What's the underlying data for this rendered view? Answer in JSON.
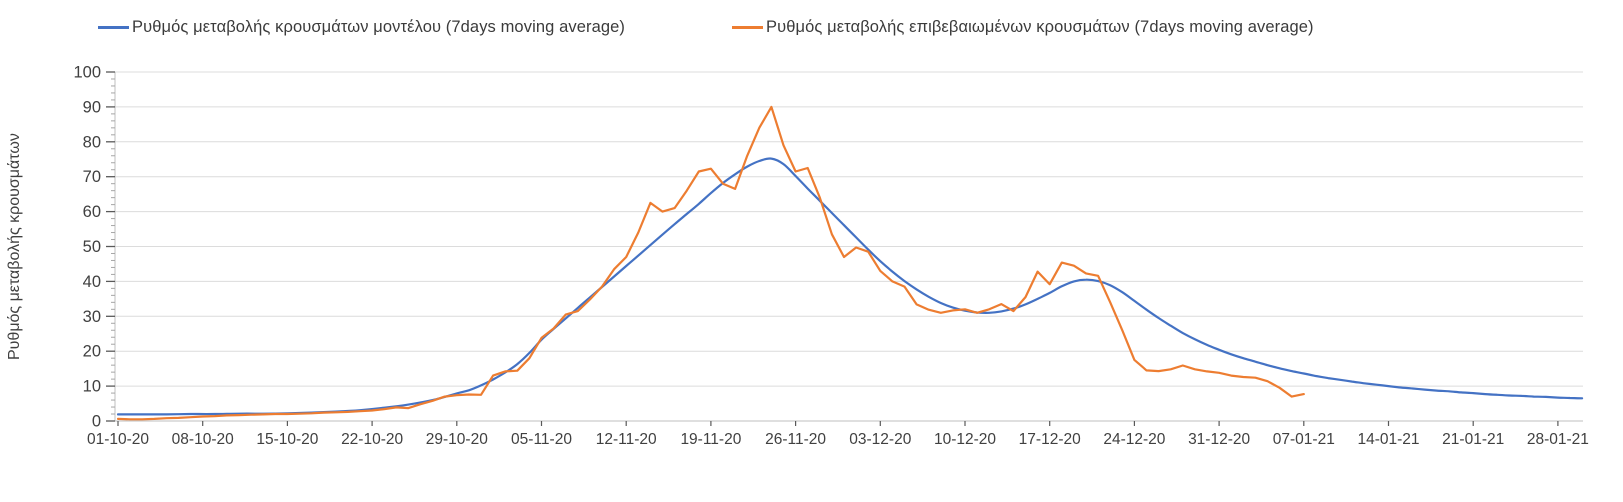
{
  "chart_data": {
    "type": "line",
    "title": "",
    "legend_position": "top",
    "grid": "horizontal",
    "y_axis": {
      "label": "Ρυθμός μεταβολής κρουσμάτων",
      "min": 0,
      "max": 100,
      "major_tick": 10,
      "minor_tick": 2
    },
    "x_axis": {
      "tick_labels": [
        "01-10-20",
        "08-10-20",
        "15-10-20",
        "22-10-20",
        "29-10-20",
        "05-11-20",
        "12-11-20",
        "19-11-20",
        "26-11-20",
        "03-12-20",
        "10-12-20",
        "17-12-20",
        "24-12-20",
        "31-12-20",
        "07-01-21",
        "14-01-21",
        "21-01-21",
        "28-01-21"
      ],
      "days_per_tick": 7,
      "total_days": 121
    },
    "colors": {
      "model_line": "#4472c4",
      "confirmed_line": "#ed7d31",
      "gridline": "#dcdcdc",
      "axis_line": "#bfbfbf",
      "major_tick": "#595959",
      "minor_tick": "#a6a6a6",
      "tick_label": "#404040"
    },
    "series": [
      {
        "name": "Ρυθμός μεταβολής κρουσμάτων μοντέλου (7days moving average)",
        "color": "#4472c4",
        "style": "smooth",
        "points": [
          [
            0,
            1.9
          ],
          [
            2,
            1.9
          ],
          [
            4,
            1.9
          ],
          [
            6,
            2
          ],
          [
            8,
            2
          ],
          [
            10,
            2.1
          ],
          [
            12,
            2.1
          ],
          [
            14,
            2.2
          ],
          [
            16,
            2.4
          ],
          [
            18,
            2.7
          ],
          [
            20,
            3.1
          ],
          [
            22,
            3.8
          ],
          [
            24,
            4.7
          ],
          [
            26,
            6
          ],
          [
            28,
            7.9
          ],
          [
            29,
            8.8
          ],
          [
            30,
            10.2
          ],
          [
            31,
            11.9
          ],
          [
            32,
            13.9
          ],
          [
            33,
            16.3
          ],
          [
            34,
            19.5
          ],
          [
            35,
            23.3
          ],
          [
            36,
            26.4
          ],
          [
            37,
            29.4
          ],
          [
            38,
            32.4
          ],
          [
            39,
            35.4
          ],
          [
            40,
            38.4
          ],
          [
            41,
            41.4
          ],
          [
            42,
            44.4
          ],
          [
            43,
            47.4
          ],
          [
            44,
            50.4
          ],
          [
            45,
            53.4
          ],
          [
            46,
            56.4
          ],
          [
            47,
            59.3
          ],
          [
            48,
            62.2
          ],
          [
            49,
            65.3
          ],
          [
            50,
            68.2
          ],
          [
            51,
            70.7
          ],
          [
            52,
            72.9
          ],
          [
            53,
            74.5
          ],
          [
            54,
            75.2
          ],
          [
            55,
            73.6
          ],
          [
            56,
            70.2
          ],
          [
            57,
            66.6
          ],
          [
            58,
            63.1
          ],
          [
            59,
            59.6
          ],
          [
            60,
            56.1
          ],
          [
            61,
            52.6
          ],
          [
            62,
            49.1
          ],
          [
            63,
            45.8
          ],
          [
            64,
            42.8
          ],
          [
            65,
            40.1
          ],
          [
            66,
            37.7
          ],
          [
            67,
            35.6
          ],
          [
            68,
            33.8
          ],
          [
            69,
            32.5
          ],
          [
            70,
            31.6
          ],
          [
            71,
            31.1
          ],
          [
            72,
            31
          ],
          [
            73,
            31.4
          ],
          [
            74,
            32.2
          ],
          [
            75,
            33.4
          ],
          [
            76,
            35
          ],
          [
            77,
            36.7
          ],
          [
            78,
            38.6
          ],
          [
            79,
            40
          ],
          [
            80,
            40.5
          ],
          [
            81,
            40.1
          ],
          [
            82,
            38.9
          ],
          [
            83,
            36.9
          ],
          [
            84,
            34.4
          ],
          [
            85,
            31.9
          ],
          [
            86,
            29.5
          ],
          [
            87,
            27.3
          ],
          [
            88,
            25.2
          ],
          [
            89,
            23.4
          ],
          [
            90,
            21.8
          ],
          [
            91,
            20.4
          ],
          [
            92,
            19.1
          ],
          [
            93,
            18
          ],
          [
            94,
            17
          ],
          [
            95,
            16
          ],
          [
            96,
            15.1
          ],
          [
            97,
            14.3
          ],
          [
            98,
            13.6
          ],
          [
            99,
            12.9
          ],
          [
            100,
            12.3
          ],
          [
            101,
            11.8
          ],
          [
            102,
            11.3
          ],
          [
            103,
            10.8
          ],
          [
            104,
            10.4
          ],
          [
            105,
            10
          ],
          [
            106,
            9.6
          ],
          [
            107,
            9.3
          ],
          [
            108,
            9
          ],
          [
            109,
            8.7
          ],
          [
            110,
            8.5
          ],
          [
            111,
            8.2
          ],
          [
            112,
            8
          ],
          [
            113,
            7.7
          ],
          [
            114,
            7.5
          ],
          [
            115,
            7.3
          ],
          [
            116,
            7.2
          ],
          [
            117,
            7
          ],
          [
            118,
            6.9
          ],
          [
            119,
            6.7
          ],
          [
            120,
            6.6
          ],
          [
            121,
            6.5
          ]
        ]
      },
      {
        "name": "Ρυθμός μεταβολής επιβεβαιωμένων κρουσμάτων (7days moving average)",
        "color": "#ed7d31",
        "style": "linear",
        "points": [
          [
            0,
            0.6
          ],
          [
            1,
            0.5
          ],
          [
            2,
            0.5
          ],
          [
            3,
            0.6
          ],
          [
            4,
            0.8
          ],
          [
            5,
            0.9
          ],
          [
            6,
            1.1
          ],
          [
            7,
            1.3
          ],
          [
            8,
            1.4
          ],
          [
            9,
            1.6
          ],
          [
            10,
            1.7
          ],
          [
            11,
            1.8
          ],
          [
            12,
            1.9
          ],
          [
            13,
            2
          ],
          [
            14,
            2
          ],
          [
            15,
            2.1
          ],
          [
            16,
            2.2
          ],
          [
            17,
            2.4
          ],
          [
            18,
            2.5
          ],
          [
            19,
            2.6
          ],
          [
            20,
            2.8
          ],
          [
            21,
            3
          ],
          [
            22,
            3.4
          ],
          [
            23,
            3.9
          ],
          [
            24,
            3.7
          ],
          [
            25,
            4.8
          ],
          [
            26,
            5.8
          ],
          [
            27,
            7
          ],
          [
            28,
            7.4
          ],
          [
            29,
            7.6
          ],
          [
            30,
            7.5
          ],
          [
            31,
            13
          ],
          [
            32,
            14.2
          ],
          [
            33,
            14.4
          ],
          [
            34,
            18
          ],
          [
            35,
            23.8
          ],
          [
            36,
            26.5
          ],
          [
            37,
            30.5
          ],
          [
            38,
            31.5
          ],
          [
            39,
            34.8
          ],
          [
            40,
            38.5
          ],
          [
            41,
            43.5
          ],
          [
            42,
            47
          ],
          [
            43,
            54
          ],
          [
            44,
            62.5
          ],
          [
            45,
            60
          ],
          [
            46,
            61
          ],
          [
            47,
            66
          ],
          [
            48,
            71.5
          ],
          [
            49,
            72.3
          ],
          [
            50,
            68
          ],
          [
            51,
            66.5
          ],
          [
            52,
            76
          ],
          [
            53,
            84
          ],
          [
            54,
            90
          ],
          [
            55,
            79
          ],
          [
            56,
            71.5
          ],
          [
            57,
            72.5
          ],
          [
            58,
            64
          ],
          [
            59,
            53.5
          ],
          [
            60,
            47
          ],
          [
            61,
            49.7
          ],
          [
            62,
            48.5
          ],
          [
            63,
            43
          ],
          [
            64,
            40
          ],
          [
            65,
            38.5
          ],
          [
            66,
            33.4
          ],
          [
            67,
            31.9
          ],
          [
            68,
            31
          ],
          [
            69,
            31.7
          ],
          [
            70,
            32
          ],
          [
            71,
            31
          ],
          [
            72,
            32
          ],
          [
            73,
            33.5
          ],
          [
            74,
            31.5
          ],
          [
            75,
            35.5
          ],
          [
            76,
            42.8
          ],
          [
            77,
            39.2
          ],
          [
            78,
            45.4
          ],
          [
            79,
            44.5
          ],
          [
            80,
            42.3
          ],
          [
            81,
            41.6
          ],
          [
            82,
            34
          ],
          [
            83,
            26
          ],
          [
            84,
            17.5
          ],
          [
            85,
            14.5
          ],
          [
            86,
            14.3
          ],
          [
            87,
            14.8
          ],
          [
            88,
            15.9
          ],
          [
            89,
            14.8
          ],
          [
            90,
            14.2
          ],
          [
            91,
            13.8
          ],
          [
            92,
            13
          ],
          [
            93,
            12.6
          ],
          [
            94,
            12.4
          ],
          [
            95,
            11.4
          ],
          [
            96,
            9.5
          ],
          [
            97,
            7
          ],
          [
            98,
            7.7
          ]
        ]
      }
    ]
  }
}
